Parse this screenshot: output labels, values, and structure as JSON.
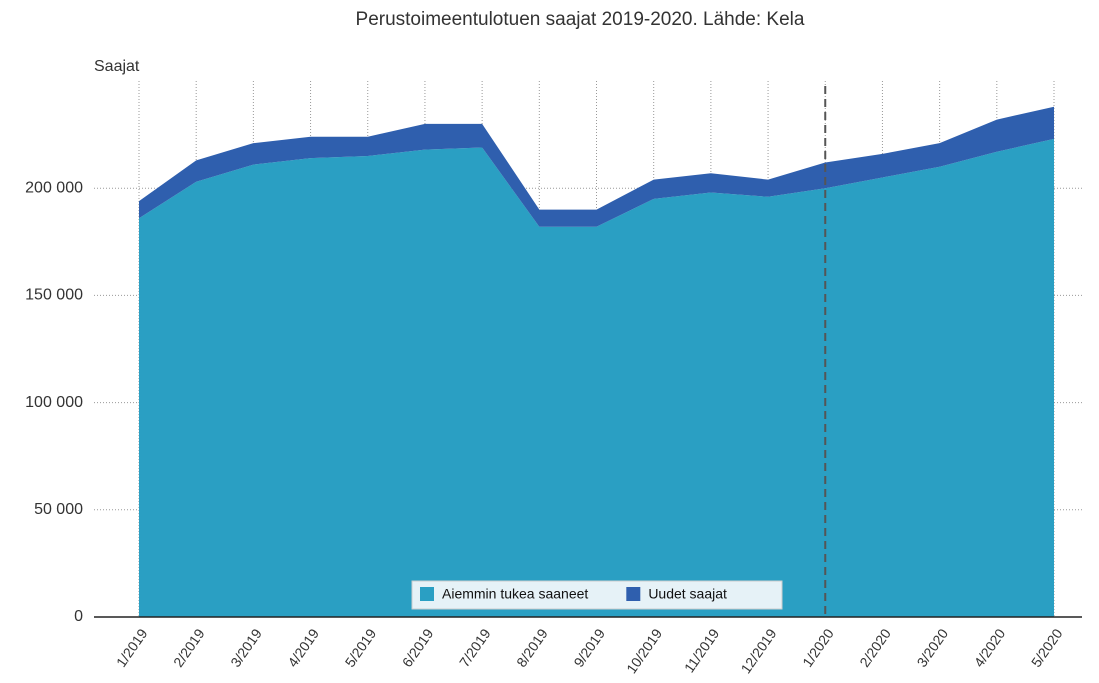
{
  "chart_data": {
    "type": "stacked_area",
    "title": "Perustoimeentulotuen saajat 2019-2020. Lähde: Kela",
    "y_label": "Saajat",
    "categories": [
      "1/2019",
      "2/2019",
      "3/2019",
      "4/2019",
      "5/2019",
      "6/2019",
      "7/2019",
      "8/2019",
      "9/2019",
      "10/2019",
      "11/2019",
      "12/2019",
      "1/2020",
      "2/2020",
      "3/2020",
      "4/2020",
      "5/2020"
    ],
    "series": [
      {
        "name": "Aiemmin tukea saaneet",
        "color": "#2a9fc3",
        "values": [
          186000,
          203000,
          211000,
          214000,
          215000,
          218000,
          219000,
          182000,
          182000,
          195000,
          198000,
          196000,
          200000,
          205000,
          210000,
          217000,
          223000
        ]
      },
      {
        "name": "Uudet saajat",
        "color": "#2f5fae",
        "values": [
          8000,
          10000,
          10000,
          10000,
          9000,
          12000,
          11000,
          8000,
          8000,
          9000,
          9000,
          8000,
          12000,
          11000,
          11000,
          15000,
          15000
        ]
      }
    ],
    "ylim": [
      0,
      250000
    ],
    "yticks": [
      0,
      {
        "value": 50000,
        "label": "50 000"
      },
      {
        "value": 100000,
        "label": "100 000"
      },
      {
        "value": 150000,
        "label": "150 000"
      },
      {
        "value": 200000,
        "label": "200 000"
      }
    ],
    "grid": true,
    "legend": "bottom"
  }
}
